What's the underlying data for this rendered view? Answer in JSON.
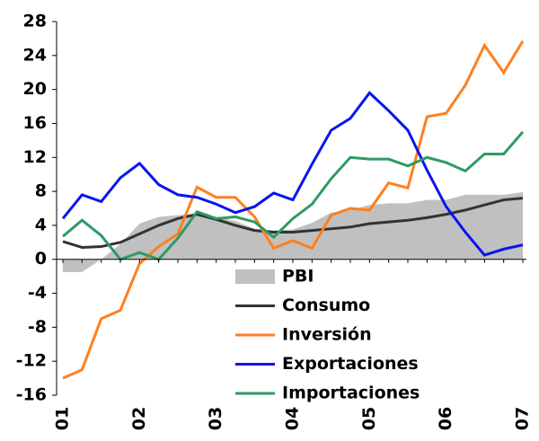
{
  "chart_data": {
    "type": "line",
    "categories": [
      "01",
      null,
      null,
      null,
      "02",
      null,
      null,
      null,
      "03",
      null,
      null,
      null,
      "04",
      null,
      null,
      null,
      "05",
      null,
      null,
      null,
      "06",
      null,
      null,
      null,
      "07"
    ],
    "ylim": [
      -16,
      28
    ],
    "yticks": [
      -16,
      -12,
      -8,
      -4,
      0,
      4,
      8,
      12,
      16,
      20,
      24,
      28
    ],
    "series": [
      {
        "name": "PBI",
        "color": "#c0c0c0",
        "style": "area",
        "values": [
          -1.5,
          -1.5,
          0,
          1.8,
          4.2,
          5,
          5.2,
          5.4,
          5,
          4.5,
          3.6,
          3.4,
          3.5,
          4.3,
          5.5,
          5.8,
          6.4,
          6.6,
          6.6,
          7.0,
          7.0,
          7.6,
          7.6,
          7.6,
          7.9
        ]
      },
      {
        "name": "Consumo",
        "color": "#333333",
        "style": "line",
        "values": [
          2.1,
          1.4,
          1.5,
          2,
          3,
          4,
          4.8,
          5.3,
          4.7,
          4,
          3.4,
          3.2,
          3.2,
          3.4,
          3.6,
          3.8,
          4.2,
          4.4,
          4.6,
          4.9,
          5.3,
          5.8,
          6.4,
          7.0,
          7.2
        ]
      },
      {
        "name": "Inversión",
        "color": "#ff7f1e",
        "style": "line",
        "values": [
          -14,
          -13,
          -7,
          -6,
          -0.5,
          1.5,
          3,
          8.5,
          7.3,
          7.3,
          5,
          1.3,
          2.2,
          1.3,
          5.2,
          6,
          5.8,
          9,
          8.4,
          16.8,
          17.2,
          20.5,
          25.2,
          22,
          25.7
        ]
      },
      {
        "name": "Exportaciones",
        "color": "#0a14f0",
        "style": "line",
        "values": [
          4.8,
          7.6,
          6.8,
          9.6,
          11.3,
          8.8,
          7.6,
          7.3,
          6.5,
          5.5,
          6.2,
          7.8,
          7.0,
          11.2,
          15.2,
          16.6,
          19.6,
          17.5,
          15.2,
          10.5,
          6.2,
          3.2,
          0.5,
          1.2,
          1.7
        ]
      },
      {
        "name": "Importaciones",
        "color": "#2e9a64",
        "style": "line",
        "values": [
          2.7,
          4.6,
          2.8,
          0,
          0.8,
          0,
          2.5,
          5.6,
          4.8,
          5.0,
          4.4,
          2.6,
          4.8,
          6.5,
          9.5,
          12,
          11.8,
          11.8,
          11,
          12,
          11.4,
          10.4,
          12.4,
          12.4,
          15
        ]
      }
    ]
  }
}
